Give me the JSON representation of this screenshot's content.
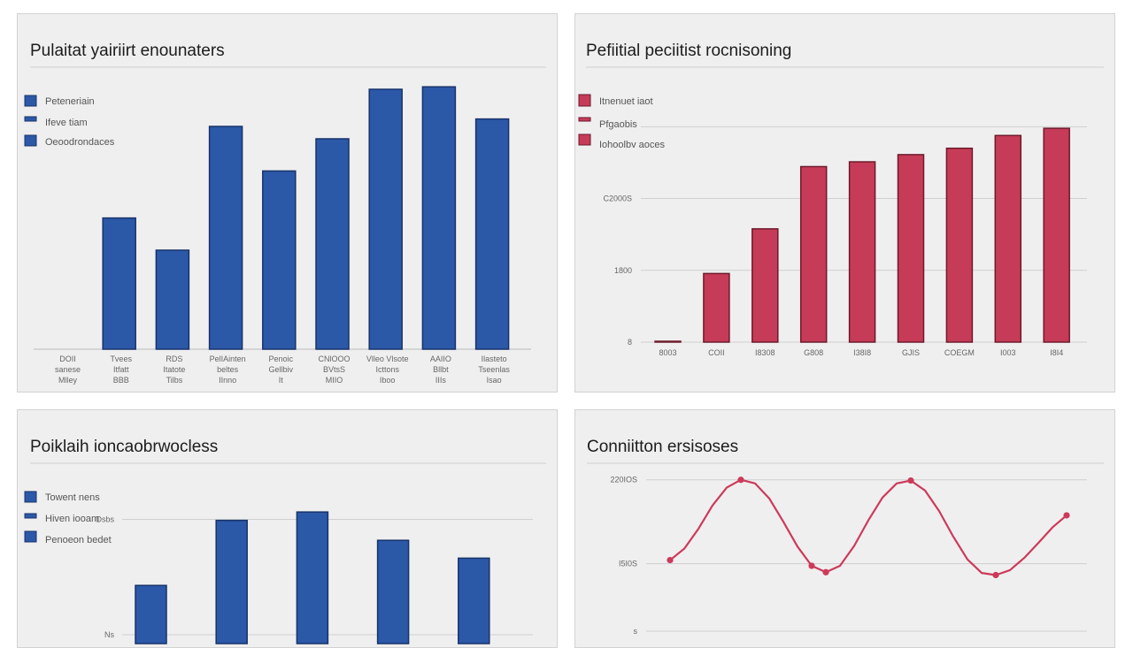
{
  "colors": {
    "blue": "#2c58a8",
    "blue_stroke": "#17336a",
    "red": "#c63b57",
    "red_stroke": "#6e1a2c",
    "grid": "#cfcfcf",
    "line": "#cc3a5a"
  },
  "chart_data": [
    {
      "type": "bar",
      "title": "Pulaitat yairiirt enounaters",
      "legend": [
        "Peteneriain",
        "Ifeve tiam",
        "Oeoodrondaces"
      ],
      "categories": [
        [
          "DOII",
          "sanese",
          "Mlley"
        ],
        [
          "Tvees",
          "Itfatt",
          "BBB"
        ],
        [
          "RDS",
          "Itatote",
          "Tilbs"
        ],
        [
          "PelIAinten",
          "beltes",
          "IInno"
        ],
        [
          "Penoic",
          "Gellbiv",
          "It"
        ],
        [
          "CNlOOO",
          "BVtsS",
          "MIIO"
        ],
        [
          "Vlleo Vlsote",
          "Icttons",
          "Iboo"
        ],
        [
          "AAIIO",
          "Bllbt",
          "IIIs"
        ],
        [
          "Ilasteto",
          "Tseenlas",
          "Isao"
        ]
      ],
      "values": [
        0,
        53,
        40,
        90,
        72,
        85,
        105,
        106,
        93
      ],
      "ylim": [
        0,
        110
      ]
    },
    {
      "type": "bar",
      "title": "Pefiitial peciitist rocnisoning",
      "legend": [
        "Itnenuet iaot",
        "Pfgaobis",
        "Iohoolbv aoces"
      ],
      "y_ticks": [
        "8",
        "1800",
        "C2000S"
      ],
      "categories": [
        "8003",
        "COII",
        "I8308",
        "G808",
        "I38I8",
        "GJIS",
        "COEGM",
        "I003",
        "I8I4"
      ],
      "values": [
        0,
        430,
        710,
        1100,
        1130,
        1175,
        1215,
        1295,
        1340
      ],
      "ylim": [
        0,
        1640
      ]
    },
    {
      "type": "bar",
      "title": "Poiklaih ioncaobrwocless",
      "legend": [
        "Towent nens",
        "Hiven iooam",
        "Penoeon bedet"
      ],
      "y_ticks": [
        "Ns",
        "Dsbs"
      ],
      "values": [
        47,
        109,
        117,
        90,
        73
      ],
      "ylim": [
        0,
        150
      ]
    },
    {
      "type": "line",
      "title": "Conniitton ersisoses",
      "y_ticks": [
        "s",
        "I5I0S",
        "220IOS"
      ],
      "x": [
        0,
        1,
        2,
        3,
        4,
        5,
        6,
        7,
        8,
        9,
        10,
        11,
        12,
        13,
        14,
        15,
        16,
        17,
        18,
        19,
        20,
        21,
        22,
        23,
        24,
        25,
        26,
        27,
        28
      ],
      "values": [
        1000,
        1160,
        1440,
        1770,
        2020,
        2130,
        2080,
        1870,
        1540,
        1190,
        920,
        830,
        920,
        1200,
        1560,
        1880,
        2080,
        2120,
        1980,
        1690,
        1330,
        1010,
        820,
        790,
        860,
        1030,
        1240,
        1460,
        1630
      ],
      "markers": [
        0,
        5,
        10,
        11,
        17,
        23,
        28
      ],
      "ylim": [
        0,
        2500
      ]
    }
  ]
}
